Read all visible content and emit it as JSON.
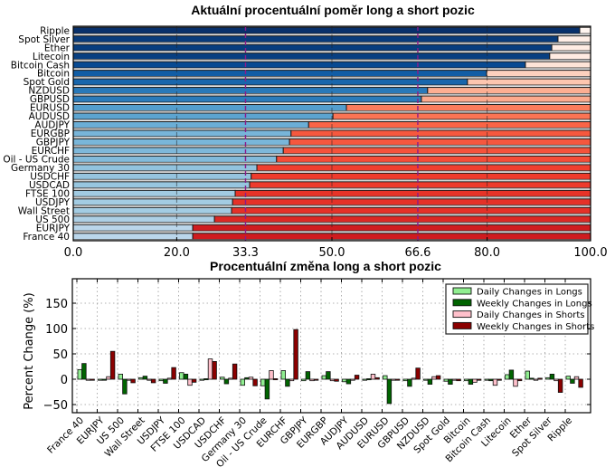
{
  "chart_data": [
    {
      "type": "bar",
      "orientation": "horizontal-stacked",
      "title": "Aktuální procentuální poměr long a short pozic",
      "categories": [
        "Ripple",
        "Spot Silver",
        "Ether",
        "Litecoin",
        "Bitcoin Cash",
        "Bitcoin",
        "Spot Gold",
        "NZDUSD",
        "GBPUSD",
        "EURUSD",
        "AUDUSD",
        "AUDJPY",
        "EURGBP",
        "GBPJPY",
        "EURCHF",
        "Oil - US Crude",
        "Germany 30",
        "USDCHF",
        "USDCAD",
        "FTSE 100",
        "USDJPY",
        "Wall Street",
        "US 500",
        "EURJPY",
        "France 40"
      ],
      "series": [
        {
          "name": "Long",
          "values": [
            97.9,
            93.7,
            92.5,
            92.1,
            87.4,
            79.9,
            76.2,
            68.5,
            67.3,
            52.8,
            50.2,
            45.5,
            42.1,
            41.8,
            40.6,
            39.3,
            35.5,
            34.4,
            34.1,
            31.3,
            30.8,
            30.6,
            27.3,
            23.1,
            23.1
          ]
        },
        {
          "name": "Short",
          "values": [
            2.1,
            6.3,
            7.5,
            7.9,
            12.6,
            20.1,
            23.8,
            31.5,
            32.7,
            47.2,
            49.8,
            54.5,
            57.9,
            58.2,
            59.4,
            60.7,
            64.5,
            65.6,
            65.9,
            68.7,
            69.2,
            69.4,
            72.7,
            76.9,
            76.9
          ]
        }
      ],
      "xlim": [
        0,
        100
      ],
      "xticks": [
        "0.0",
        "20.0",
        "50.0",
        "80.0",
        "100.0"
      ],
      "xtick_values": [
        0,
        20,
        50,
        80,
        100
      ],
      "reference_lines": [
        {
          "value": 33.3,
          "label": "33.3",
          "color": "#8b1a8b"
        },
        {
          "value": 66.6,
          "label": "66.6",
          "color": "#8b1a8b"
        }
      ],
      "long_colors_dark_to_light": [
        "#08306b",
        "#c6dbef"
      ],
      "short_colors_light_to_dark": [
        "#fff0eb",
        "#cb181d"
      ],
      "grid": true
    },
    {
      "type": "bar",
      "orientation": "vertical-grouped",
      "title": "Procentuální změna long a short pozic",
      "ylabel": "Percent Change (%)",
      "xlabel": "",
      "ylim": [
        -65,
        195
      ],
      "yticks": [
        -50,
        0,
        50,
        100,
        150
      ],
      "ytick_labels": [
        "−50",
        "0",
        "50",
        "100",
        "150"
      ],
      "categories": [
        "France 40",
        "EURJPY",
        "US 500",
        "Wall Street",
        "USDJPY",
        "FTSE 100",
        "USDCAD",
        "USDCHF",
        "Germany 30",
        "Oil - US Crude",
        "EURCHF",
        "GBPJPY",
        "EURGBP",
        "AUDJPY",
        "AUDUSD",
        "EURUSD",
        "GBPUSD",
        "NZDUSD",
        "Spot Gold",
        "Bitcoin",
        "Bitcoin Cash",
        "Litecoin",
        "Ether",
        "Spot Silver",
        "Ripple"
      ],
      "series": [
        {
          "name": "Daily Changes in Longs",
          "color": "#90ee90",
          "values": [
            19,
            -1,
            10,
            3,
            -3,
            13,
            -2,
            4,
            -12,
            -13,
            17,
            -3,
            7,
            -5,
            0,
            7,
            -3,
            -2,
            -4,
            -3,
            -2,
            9,
            16,
            3,
            6
          ]
        },
        {
          "name": "Weekly Changes in Longs",
          "color": "#006400",
          "values": [
            31,
            -2,
            -29,
            6,
            -8,
            10,
            1,
            -9,
            3,
            -39,
            -14,
            15,
            15,
            -9,
            1,
            -48,
            -14,
            -10,
            -10,
            -10,
            -3,
            18,
            2,
            10,
            -8
          ]
        },
        {
          "name": "Daily Changes in Shorts",
          "color": "#ffc0cb",
          "values": [
            -1,
            5,
            -1,
            -2,
            2,
            -12,
            40,
            2,
            4,
            17,
            -3,
            -3,
            -3,
            0,
            10,
            -1,
            2,
            5,
            -1,
            -6,
            -12,
            -14,
            -2,
            -3,
            5
          ]
        },
        {
          "name": "Weekly Changes in Shorts",
          "color": "#8b0000",
          "values": [
            -1,
            55,
            -7,
            -7,
            23,
            -6,
            35,
            30,
            -13,
            1,
            98,
            -1,
            -4,
            8,
            3,
            -1,
            22,
            7,
            -3,
            -2,
            0,
            -3,
            2,
            -26,
            -16
          ]
        }
      ],
      "legend": {
        "position": "top-right",
        "entries": [
          "Daily Changes in Longs",
          "Weekly Changes in Longs",
          "Daily Changes in Shorts",
          "Weekly Changes in Shorts"
        ]
      },
      "grid": true
    }
  ]
}
